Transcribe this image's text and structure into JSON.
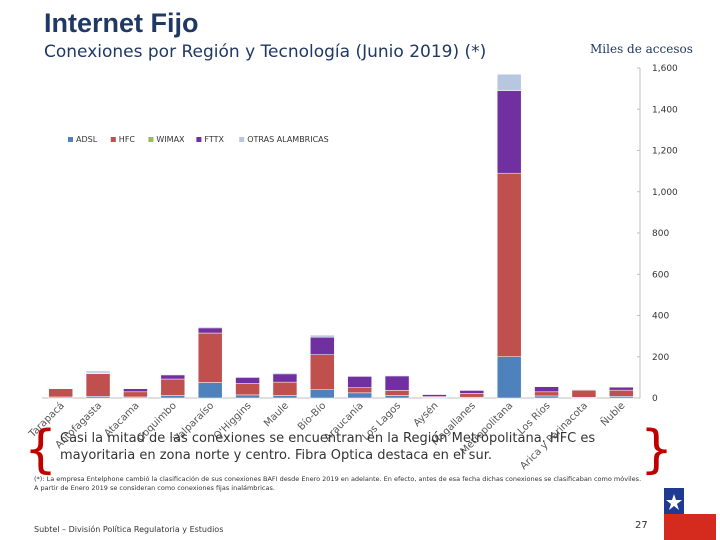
{
  "header": {
    "title": "Internet Fijo",
    "subtitle": "Conexiones por Región y Tecnología (Junio 2019) (*)",
    "units": "Miles de accesos"
  },
  "summary_text": "Casi la mitad de las conexiones se encuentran en la Región Metropolitana. HFC es mayoritaria en zona norte y centro. Fibra Optica destaca en el sur.",
  "footnote": "(*): La empresa Entelphone cambió la clasificación de sus conexiones BAFI desde Enero 2019 en adelante. En efecto, antes de esa fecha dichas conexiones se clasificaban como móviles. A partir de Enero 2019 se consideran como conexiones fijas inalámbricas.",
  "footer": "Subtel – División Política Regulatoria y Estudios",
  "page_number": "27",
  "chart_data": {
    "type": "bar",
    "stacked": true,
    "title": "Conexiones por Región y Tecnología (Junio 2019) (*)",
    "ylabel": "Miles de accesos",
    "ylim": [
      0,
      1600
    ],
    "yticks": [
      0,
      200,
      400,
      600,
      800,
      1000,
      1200,
      1400,
      1600
    ],
    "ytick_labels": [
      "0",
      "200",
      "400",
      "600",
      "800",
      "1,000",
      "1,200",
      "1,400",
      "1,600"
    ],
    "y_axis_position": "right",
    "legend_position": "top-left",
    "categories": [
      "Tarapacá",
      "Antofagasta",
      "Atacama",
      "Coquimbo",
      "Valparaíso",
      "O'Higgins",
      "Maule",
      "Bío-Bío",
      "Araucanía",
      "Los Lagos",
      "Aysén",
      "Magallanes",
      "Metropolitana",
      "Los Ríos",
      "Arica y Parinacota",
      "Ñuble"
    ],
    "series": [
      {
        "name": "ADSL",
        "color": "#4f81bd",
        "values": [
          5,
          8,
          5,
          12,
          75,
          15,
          12,
          40,
          25,
          12,
          3,
          4,
          200,
          10,
          3,
          8
        ]
      },
      {
        "name": "HFC",
        "color": "#c0504d",
        "values": [
          40,
          110,
          25,
          80,
          240,
          55,
          65,
          170,
          25,
          25,
          4,
          18,
          890,
          20,
          35,
          30
        ]
      },
      {
        "name": "WIMAX",
        "color": "#9bbb59",
        "values": [
          0,
          0,
          0,
          0,
          0,
          0,
          0,
          0,
          0,
          0,
          0,
          0,
          0,
          0,
          0,
          0
        ]
      },
      {
        "name": "FTTX",
        "color": "#7030a0",
        "values": [
          2,
          3,
          15,
          20,
          25,
          30,
          40,
          85,
          55,
          70,
          10,
          15,
          400,
          25,
          3,
          15
        ]
      },
      {
        "name": "OTRAS ALAMBRICAS",
        "color": "#b8c7e0",
        "values": [
          2,
          10,
          2,
          3,
          5,
          3,
          5,
          10,
          3,
          3,
          1,
          2,
          80,
          2,
          1,
          2
        ]
      }
    ]
  }
}
